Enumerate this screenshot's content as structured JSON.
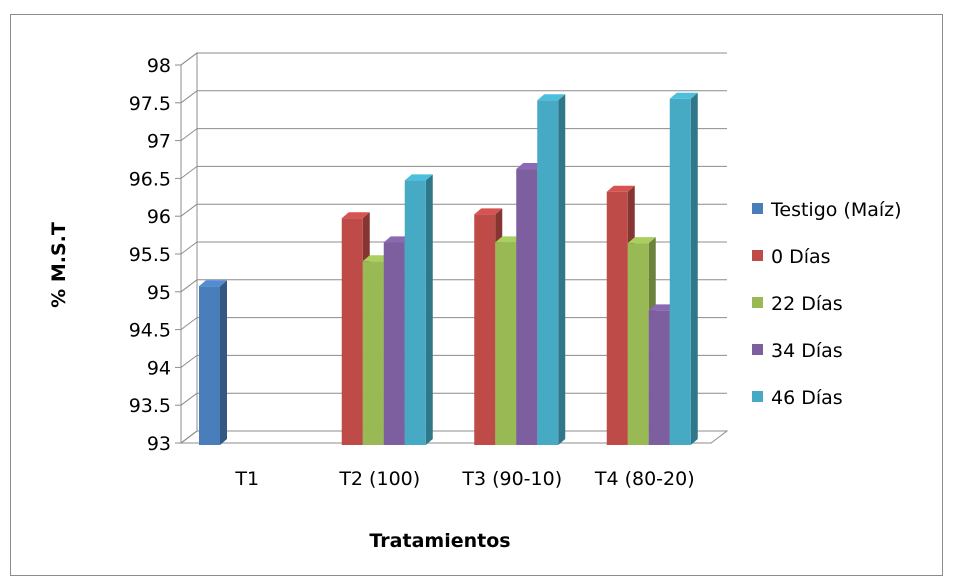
{
  "chart_data": {
    "type": "bar",
    "style": "3d-clustered-column",
    "title": "",
    "xlabel": "Tratamientos",
    "ylabel": "% M.S.T",
    "ylim": [
      93,
      98
    ],
    "yticks": [
      "93",
      "93.5",
      "94",
      "94.5",
      "95",
      "95.5",
      "96",
      "96.5",
      "97",
      "97.5",
      "98"
    ],
    "grid": true,
    "legend_position": "right",
    "categories": [
      "T1",
      "T2 (100)",
      "T3 (90-10)",
      "T4 (80-20)"
    ],
    "series": [
      {
        "name": "Testigo (Maíz)",
        "color": "#4a7ebb",
        "values": [
          95.1,
          null,
          null,
          null
        ]
      },
      {
        "name": "0 Días",
        "color": "#be4b48",
        "values": [
          null,
          96.0,
          96.05,
          96.35
        ]
      },
      {
        "name": "22 Días",
        "color": "#98b954",
        "values": [
          null,
          95.43,
          95.68,
          95.67
        ]
      },
      {
        "name": "34 Días",
        "color": "#7d5fa0",
        "values": [
          null,
          95.68,
          96.65,
          94.78
        ]
      },
      {
        "name": "46 Días",
        "color": "#46aac5",
        "values": [
          null,
          96.5,
          97.56,
          97.58
        ]
      }
    ]
  }
}
